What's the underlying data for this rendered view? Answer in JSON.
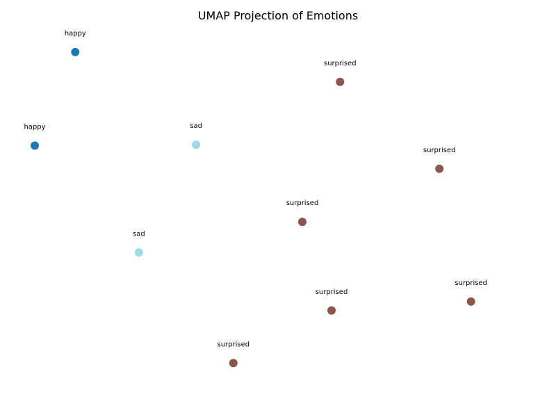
{
  "chart_data": {
    "type": "scatter",
    "title": "UMAP Projection of Emotions",
    "xlabel": "",
    "ylabel": "",
    "axes_visible": false,
    "grid": false,
    "legend": "none",
    "x_range": [
      0,
      12
    ],
    "y_range": [
      0,
      8.5
    ],
    "colors": {
      "happy": "#1f77b4",
      "sad": "#9edae5",
      "surprised": "#8c564b"
    },
    "points": [
      {
        "label": "happy",
        "x": 1.0,
        "y": 7.8
      },
      {
        "label": "happy",
        "x": 0.0,
        "y": 5.7
      },
      {
        "label": "sad",
        "x": 3.98,
        "y": 5.72
      },
      {
        "label": "sad",
        "x": 2.57,
        "y": 3.3
      },
      {
        "label": "surprised",
        "x": 7.53,
        "y": 7.13
      },
      {
        "label": "surprised",
        "x": 9.98,
        "y": 5.18
      },
      {
        "label": "surprised",
        "x": 6.6,
        "y": 3.99
      },
      {
        "label": "surprised",
        "x": 10.76,
        "y": 2.2
      },
      {
        "label": "surprised",
        "x": 7.32,
        "y": 2.0
      },
      {
        "label": "surprised",
        "x": 4.9,
        "y": 0.82
      }
    ]
  }
}
